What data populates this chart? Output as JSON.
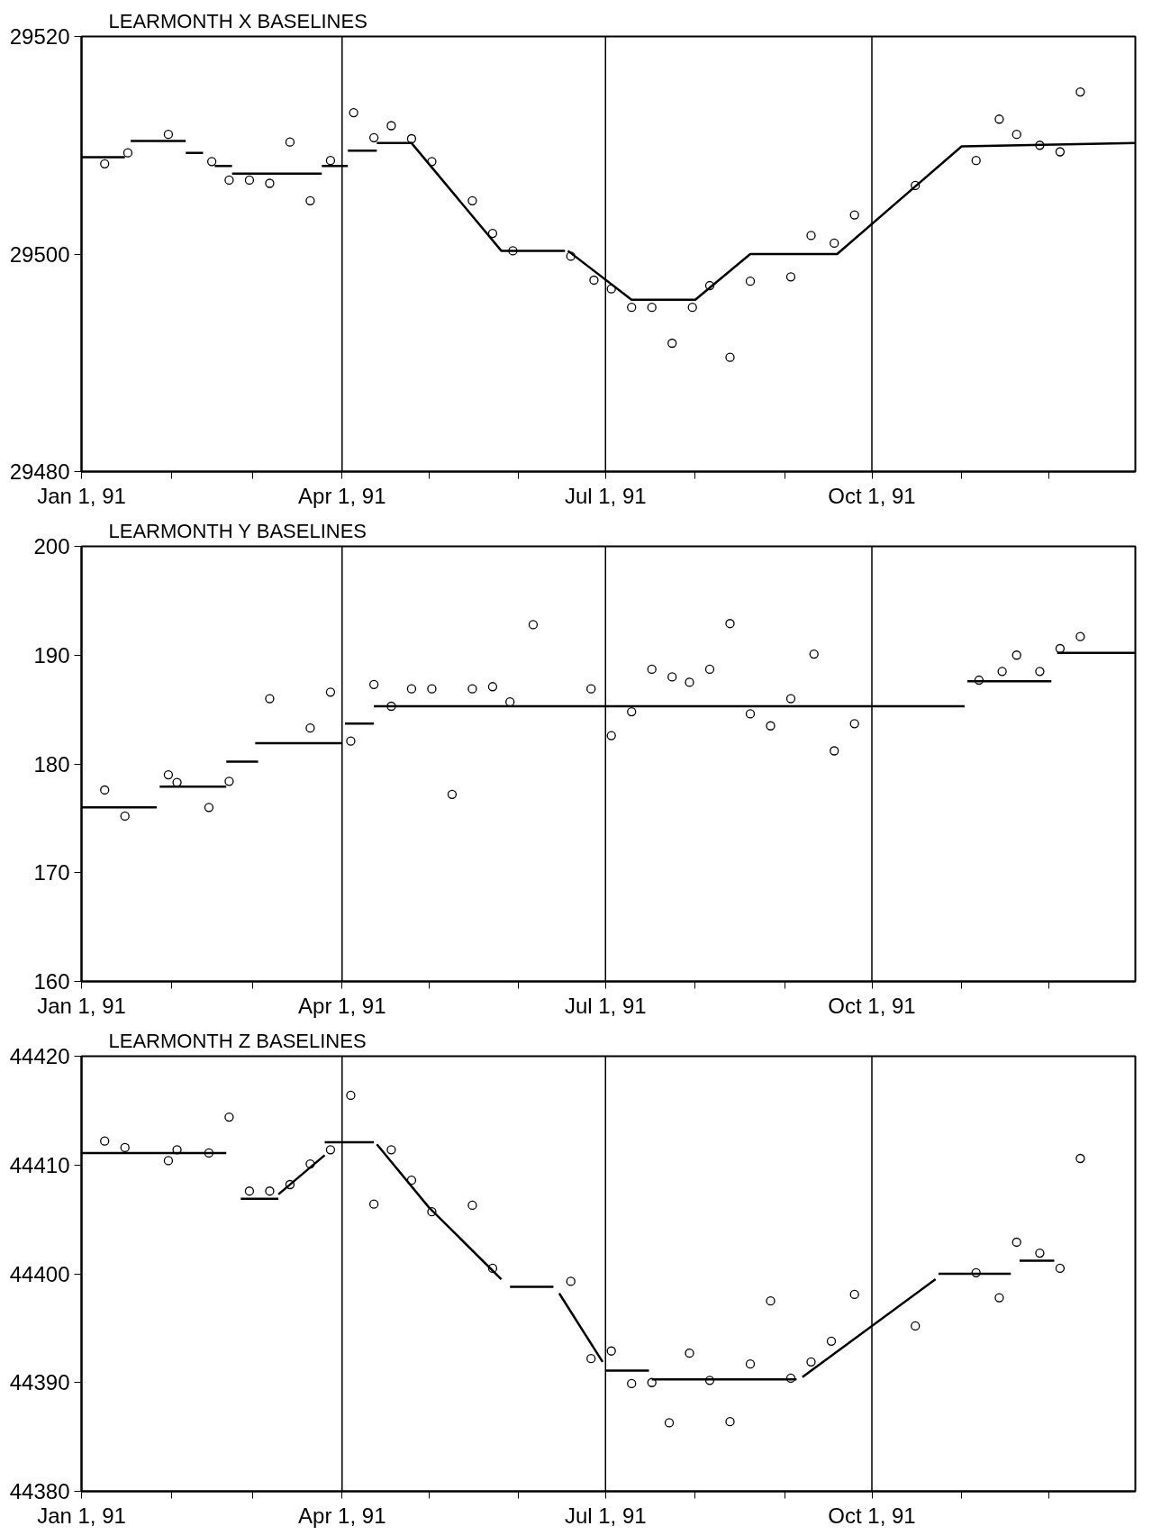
{
  "chart_data": [
    {
      "type": "scatter",
      "title": "LEARMONTH  X  BASELINES",
      "xlim": [
        "1991-01-01",
        "1991-12-31"
      ],
      "ylim": [
        29480,
        29520
      ],
      "yticks": [
        29480,
        29500,
        29520
      ],
      "xticks": [
        {
          "value": "1991-01-01",
          "label": "Jan 1, 91"
        },
        {
          "value": "1991-02-01",
          "label": null
        },
        {
          "value": "1991-03-01",
          "label": null
        },
        {
          "value": "1991-04-01",
          "label": "Apr 1, 91"
        },
        {
          "value": "1991-05-01",
          "label": null
        },
        {
          "value": "1991-06-01",
          "label": null
        },
        {
          "value": "1991-07-01",
          "label": "Jul 1, 91"
        },
        {
          "value": "1991-08-01",
          "label": null
        },
        {
          "value": "1991-09-01",
          "label": null
        },
        {
          "value": "1991-10-01",
          "label": "Oct 1, 91"
        },
        {
          "value": "1991-11-01",
          "label": null
        },
        {
          "value": "1991-12-01",
          "label": null
        }
      ],
      "ref_lines": [
        {
          "axis": "x",
          "value": "1991-04-01",
          "color": "#000000"
        },
        {
          "axis": "x",
          "value": "1991-07-01",
          "color": "#000000"
        },
        {
          "axis": "x",
          "value": "1991-10-01",
          "color": "#000000"
        }
      ],
      "grid": false,
      "marker": "circle",
      "series": [
        {
          "color": "#000000",
          "x": [
            "1991-01-09",
            "1991-01-17",
            "1991-01-31",
            "1991-02-15",
            "1991-02-21",
            "1991-02-28",
            "1991-03-07",
            "1991-03-14",
            "1991-03-21",
            "1991-03-28",
            "1991-04-05",
            "1991-04-12",
            "1991-04-18",
            "1991-04-25",
            "1991-05-02",
            "1991-05-16",
            "1991-05-23",
            "1991-05-30",
            "1991-06-19",
            "1991-06-27",
            "1991-07-03",
            "1991-07-10",
            "1991-07-17",
            "1991-07-24",
            "1991-07-31",
            "1991-08-06",
            "1991-08-13",
            "1991-08-20",
            "1991-09-03",
            "1991-09-10",
            "1991-09-18",
            "1991-09-25",
            "1991-10-16",
            "1991-11-06",
            "1991-11-14",
            "1991-11-20",
            "1991-11-28",
            "1991-12-05",
            "1991-12-12"
          ],
          "values": [
            29508.3,
            29509.3,
            29511.0,
            29508.5,
            29506.8,
            29506.8,
            29506.5,
            29510.3,
            29504.9,
            29508.6,
            29513.0,
            29510.7,
            29511.8,
            29510.6,
            29508.5,
            29504.9,
            29501.9,
            29500.3,
            29499.8,
            29497.6,
            29496.8,
            29495.1,
            29495.1,
            29491.8,
            29495.1,
            29497.1,
            29490.5,
            29497.5,
            29497.9,
            29501.7,
            29501.0,
            29503.6,
            29506.3,
            29508.6,
            29512.4,
            29511.0,
            29510.0,
            29509.4,
            29514.9
          ]
        },
        {
          "type": "line",
          "marker": "none",
          "line_style": "solid",
          "color": "#000000",
          "x": [
            "1991-01-01",
            "1991-01-16",
            null,
            "1991-01-18",
            "1991-02-06",
            null,
            "1991-02-06",
            "1991-02-12",
            null,
            "1991-02-16",
            "1991-02-22",
            null,
            "1991-02-22",
            "1991-03-25",
            null,
            "1991-03-25",
            "1991-04-03",
            null,
            "1991-04-03",
            "1991-04-13",
            null,
            "1991-04-13",
            "1991-04-25",
            "1991-05-26",
            "1991-06-17",
            null,
            "1991-06-18",
            "1991-07-10",
            "1991-08-01",
            "1991-08-20",
            "1991-09-19",
            "1991-11-01",
            "1991-12-31"
          ],
          "values": [
            29508.9,
            29508.9,
            null,
            29510.4,
            29510.4,
            null,
            29509.3,
            29509.3,
            null,
            29508.1,
            29508.1,
            null,
            29507.4,
            29507.4,
            null,
            29508.1,
            29508.1,
            null,
            29509.5,
            29509.5,
            null,
            29510.2,
            29510.2,
            29500.3,
            29500.3,
            null,
            29500.3,
            29495.8,
            29495.8,
            29500.0,
            29500.0,
            29509.9,
            29510.2
          ]
        }
      ]
    },
    {
      "type": "scatter",
      "title": "LEARMONTH  Y  BASELINES",
      "xlim": [
        "1991-01-01",
        "1991-12-31"
      ],
      "ylim": [
        160,
        200
      ],
      "yticks": [
        160,
        170,
        180,
        190,
        200
      ],
      "xticks": [
        {
          "value": "1991-01-01",
          "label": "Jan 1, 91"
        },
        {
          "value": "1991-02-01",
          "label": null
        },
        {
          "value": "1991-03-01",
          "label": null
        },
        {
          "value": "1991-04-01",
          "label": "Apr 1, 91"
        },
        {
          "value": "1991-05-01",
          "label": null
        },
        {
          "value": "1991-06-01",
          "label": null
        },
        {
          "value": "1991-07-01",
          "label": "Jul 1, 91"
        },
        {
          "value": "1991-08-01",
          "label": null
        },
        {
          "value": "1991-09-01",
          "label": null
        },
        {
          "value": "1991-10-01",
          "label": "Oct 1, 91"
        },
        {
          "value": "1991-11-01",
          "label": null
        },
        {
          "value": "1991-12-01",
          "label": null
        }
      ],
      "ref_lines": [
        {
          "axis": "x",
          "value": "1991-04-01",
          "color": "#000000"
        },
        {
          "axis": "x",
          "value": "1991-07-01",
          "color": "#000000"
        },
        {
          "axis": "x",
          "value": "1991-10-01",
          "color": "#000000"
        }
      ],
      "grid": false,
      "marker": "circle",
      "series": [
        {
          "color": "#000000",
          "x": [
            "1991-01-09",
            "1991-01-16",
            "1991-01-31",
            "1991-02-03",
            "1991-02-14",
            "1991-02-21",
            "1991-03-07",
            "1991-03-21",
            "1991-03-28",
            "1991-04-04",
            "1991-04-12",
            "1991-04-18",
            "1991-04-25",
            "1991-05-02",
            "1991-05-09",
            "1991-05-16",
            "1991-05-23",
            "1991-05-29",
            "1991-06-06",
            "1991-06-26",
            "1991-07-03",
            "1991-07-10",
            "1991-07-17",
            "1991-07-24",
            "1991-07-30",
            "1991-08-06",
            "1991-08-13",
            "1991-08-20",
            "1991-08-27",
            "1991-09-03",
            "1991-09-11",
            "1991-09-18",
            "1991-09-25",
            "1991-11-07",
            "1991-11-15",
            "1991-11-20",
            "1991-11-28",
            "1991-12-05",
            "1991-12-12"
          ],
          "values": [
            177.6,
            175.2,
            179.0,
            178.3,
            176.0,
            178.4,
            186.0,
            183.3,
            186.6,
            182.1,
            187.3,
            185.3,
            186.9,
            186.9,
            177.2,
            186.9,
            187.1,
            185.7,
            192.8,
            186.9,
            182.6,
            184.8,
            188.7,
            188.0,
            187.5,
            188.7,
            192.9,
            184.6,
            183.5,
            186.0,
            190.1,
            181.2,
            183.7,
            187.7,
            188.5,
            190.0,
            188.5,
            190.6,
            191.7
          ]
        },
        {
          "type": "line",
          "marker": "none",
          "line_style": "solid",
          "color": "#000000",
          "x": [
            "1991-01-01",
            "1991-01-27",
            null,
            "1991-01-28",
            "1991-02-20",
            null,
            "1991-02-20",
            "1991-03-03",
            null,
            "1991-03-02",
            "1991-04-01",
            null,
            "1991-04-02",
            "1991-04-12",
            null,
            "1991-04-12",
            "1991-11-02",
            null,
            "1991-11-03",
            "1991-12-02",
            null,
            "1991-12-04",
            "1991-12-31"
          ],
          "values": [
            176.0,
            176.0,
            null,
            177.9,
            177.9,
            null,
            180.2,
            180.2,
            null,
            181.9,
            181.9,
            null,
            183.7,
            183.7,
            null,
            185.3,
            185.3,
            null,
            187.6,
            187.6,
            null,
            190.2,
            190.2
          ]
        }
      ]
    },
    {
      "type": "scatter",
      "title": "LEARMONTH  Z  BASELINES",
      "xlim": [
        "1991-01-01",
        "1991-12-31"
      ],
      "ylim": [
        44380,
        44420
      ],
      "yticks": [
        44380,
        44390,
        44400,
        44410,
        44420
      ],
      "xticks": [
        {
          "value": "1991-01-01",
          "label": "Jan 1, 91"
        },
        {
          "value": "1991-02-01",
          "label": null
        },
        {
          "value": "1991-03-01",
          "label": null
        },
        {
          "value": "1991-04-01",
          "label": "Apr 1, 91"
        },
        {
          "value": "1991-05-01",
          "label": null
        },
        {
          "value": "1991-06-01",
          "label": null
        },
        {
          "value": "1991-07-01",
          "label": "Jul 1, 91"
        },
        {
          "value": "1991-08-01",
          "label": null
        },
        {
          "value": "1991-09-01",
          "label": null
        },
        {
          "value": "1991-10-01",
          "label": "Oct 1, 91"
        },
        {
          "value": "1991-11-01",
          "label": null
        },
        {
          "value": "1991-12-01",
          "label": null
        }
      ],
      "ref_lines": [
        {
          "axis": "x",
          "value": "1991-04-01",
          "color": "#000000"
        },
        {
          "axis": "x",
          "value": "1991-07-01",
          "color": "#000000"
        },
        {
          "axis": "x",
          "value": "1991-10-01",
          "color": "#000000"
        }
      ],
      "grid": false,
      "marker": "circle",
      "series": [
        {
          "color": "#000000",
          "x": [
            "1991-01-09",
            "1991-01-16",
            "1991-01-31",
            "1991-02-03",
            "1991-02-14",
            "1991-02-21",
            "1991-02-28",
            "1991-03-07",
            "1991-03-14",
            "1991-03-21",
            "1991-03-28",
            "1991-04-04",
            "1991-04-12",
            "1991-04-18",
            "1991-04-25",
            "1991-05-02",
            "1991-05-16",
            "1991-05-23",
            "1991-06-19",
            "1991-06-26",
            "1991-07-03",
            "1991-07-10",
            "1991-07-17",
            "1991-07-23",
            "1991-07-30",
            "1991-08-06",
            "1991-08-13",
            "1991-08-20",
            "1991-08-27",
            "1991-09-03",
            "1991-09-10",
            "1991-09-17",
            "1991-09-25",
            "1991-10-16",
            "1991-11-06",
            "1991-11-14",
            "1991-11-20",
            "1991-11-28",
            "1991-12-05",
            "1991-12-12"
          ],
          "values": [
            44412.2,
            44411.6,
            44410.4,
            44411.4,
            44411.1,
            44414.4,
            44407.6,
            44407.6,
            44408.2,
            44410.1,
            44411.4,
            44416.4,
            44406.4,
            44411.4,
            44408.6,
            44405.7,
            44406.3,
            44400.5,
            44399.3,
            44392.2,
            44392.9,
            44389.9,
            44390.0,
            44386.3,
            44392.7,
            44390.2,
            44386.4,
            44391.7,
            44397.5,
            44390.4,
            44391.9,
            44393.8,
            44398.1,
            44395.2,
            44400.1,
            44397.8,
            44402.9,
            44401.9,
            44400.5,
            44410.6
          ]
        },
        {
          "type": "line",
          "marker": "none",
          "line_style": "solid",
          "color": "#000000",
          "x": [
            "1991-01-01",
            "1991-02-20",
            null,
            "1991-02-25",
            "1991-03-10",
            null,
            "1991-03-10",
            "1991-03-26",
            null,
            "1991-03-26",
            "1991-04-12",
            null,
            "1991-04-13",
            "1991-05-01",
            "1991-05-26",
            null,
            "1991-05-29",
            "1991-06-13",
            null,
            "1991-06-15",
            "1991-06-30",
            null,
            "1991-07-01",
            "1991-07-16",
            null,
            "1991-07-17",
            "1991-09-05",
            null,
            "1991-09-07",
            "1991-10-23",
            null,
            "1991-10-24",
            "1991-11-18",
            null,
            "1991-11-21",
            "1991-12-03"
          ],
          "values": [
            44411.1,
            44411.1,
            null,
            44406.9,
            44406.9,
            null,
            44407.3,
            44410.9,
            null,
            44412.1,
            44412.1,
            null,
            44411.9,
            44406.1,
            44399.5,
            null,
            44398.8,
            44398.8,
            null,
            44398.2,
            44391.9,
            null,
            44391.1,
            44391.1,
            null,
            44390.3,
            44390.3,
            null,
            44390.5,
            44399.5,
            null,
            44400.0,
            44400.0,
            null,
            44401.2,
            44401.2
          ]
        }
      ]
    }
  ]
}
